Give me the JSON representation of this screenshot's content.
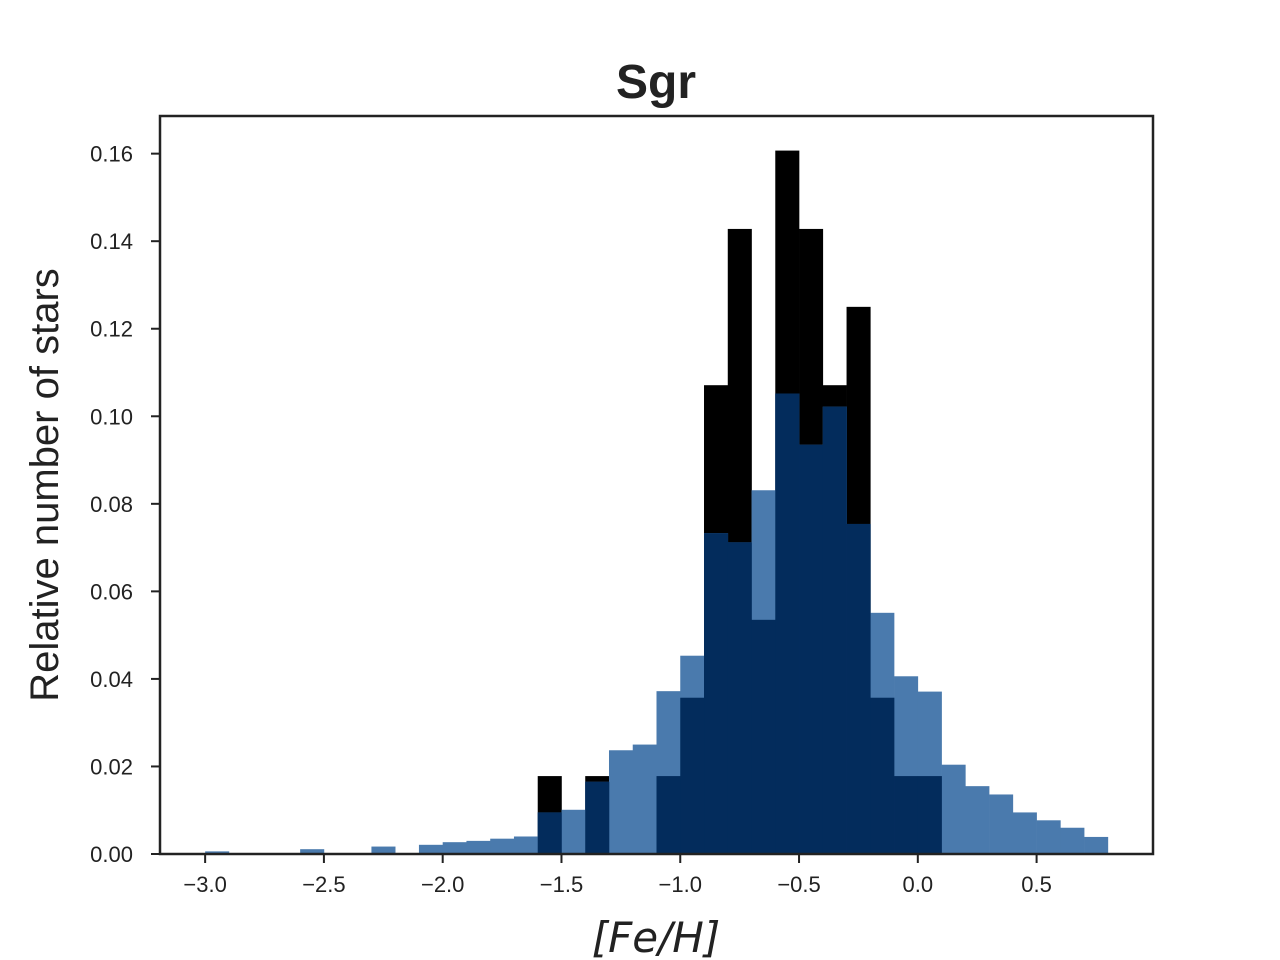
{
  "chart_data": {
    "type": "bar",
    "title": "Sgr",
    "xlabel": "[Fe/H]",
    "ylabel": "Relative number of stars",
    "xlim": [
      -3.19,
      0.99
    ],
    "ylim": [
      0.0,
      0.1686
    ],
    "xticks": [
      -3.0,
      -2.5,
      -2.0,
      -1.5,
      -1.0,
      -0.5,
      0.0,
      0.5
    ],
    "xtick_labels": [
      "−3.0",
      "−2.5",
      "−2.0",
      "−1.5",
      "−1.0",
      "−0.5",
      "0.0",
      "0.5"
    ],
    "yticks": [
      0.0,
      0.02,
      0.04,
      0.06,
      0.08,
      0.1,
      0.12,
      0.14,
      0.16
    ],
    "ytick_labels": [
      "0.00",
      "0.02",
      "0.04",
      "0.06",
      "0.08",
      "0.10",
      "0.12",
      "0.14",
      "0.16"
    ],
    "grid": false,
    "bin_width": 0.1,
    "series": [
      {
        "color": "#000000",
        "bins": [
          {
            "x0": -1.6,
            "value": 0.0178
          },
          {
            "x0": -1.4,
            "value": 0.0178
          },
          {
            "x0": -1.1,
            "value": 0.0178
          },
          {
            "x0": -1.0,
            "value": 0.0357
          },
          {
            "x0": -0.9,
            "value": 0.1071
          },
          {
            "x0": -0.8,
            "value": 0.1428
          },
          {
            "x0": -0.7,
            "value": 0.0535
          },
          {
            "x0": -0.6,
            "value": 0.1607
          },
          {
            "x0": -0.5,
            "value": 0.1428
          },
          {
            "x0": -0.4,
            "value": 0.1071
          },
          {
            "x0": -0.3,
            "value": 0.125
          },
          {
            "x0": -0.2,
            "value": 0.0357
          },
          {
            "x0": -0.1,
            "value": 0.0178
          },
          {
            "x0": 0.0,
            "value": 0.0178
          }
        ]
      },
      {
        "color": "#4a7aad",
        "bins": [
          {
            "x0": -3.0,
            "value": 0.0006
          },
          {
            "x0": -2.6,
            "value": 0.0011
          },
          {
            "x0": -2.3,
            "value": 0.0017
          },
          {
            "x0": -2.1,
            "value": 0.0021
          },
          {
            "x0": -2.0,
            "value": 0.0027
          },
          {
            "x0": -1.9,
            "value": 0.003
          },
          {
            "x0": -1.8,
            "value": 0.0035
          },
          {
            "x0": -1.7,
            "value": 0.004
          },
          {
            "x0": -1.6,
            "value": 0.0095
          },
          {
            "x0": -1.5,
            "value": 0.0101
          },
          {
            "x0": -1.4,
            "value": 0.0165
          },
          {
            "x0": -1.3,
            "value": 0.0237
          },
          {
            "x0": -1.2,
            "value": 0.025
          },
          {
            "x0": -1.1,
            "value": 0.0372
          },
          {
            "x0": -1.0,
            "value": 0.0453
          },
          {
            "x0": -0.9,
            "value": 0.0733
          },
          {
            "x0": -0.8,
            "value": 0.0712
          },
          {
            "x0": -0.7,
            "value": 0.0831
          },
          {
            "x0": -0.6,
            "value": 0.1052
          },
          {
            "x0": -0.5,
            "value": 0.0935
          },
          {
            "x0": -0.4,
            "value": 0.1022
          },
          {
            "x0": -0.3,
            "value": 0.0754
          },
          {
            "x0": -0.2,
            "value": 0.0551
          },
          {
            "x0": -0.1,
            "value": 0.0406
          },
          {
            "x0": 0.0,
            "value": 0.0371
          },
          {
            "x0": 0.1,
            "value": 0.0204
          },
          {
            "x0": 0.2,
            "value": 0.0155
          },
          {
            "x0": 0.3,
            "value": 0.0136
          },
          {
            "x0": 0.4,
            "value": 0.0095
          },
          {
            "x0": 0.5,
            "value": 0.0077
          },
          {
            "x0": 0.6,
            "value": 0.006
          },
          {
            "x0": 0.7,
            "value": 0.0039
          }
        ]
      }
    ],
    "overlap_color": "#032c5c"
  }
}
